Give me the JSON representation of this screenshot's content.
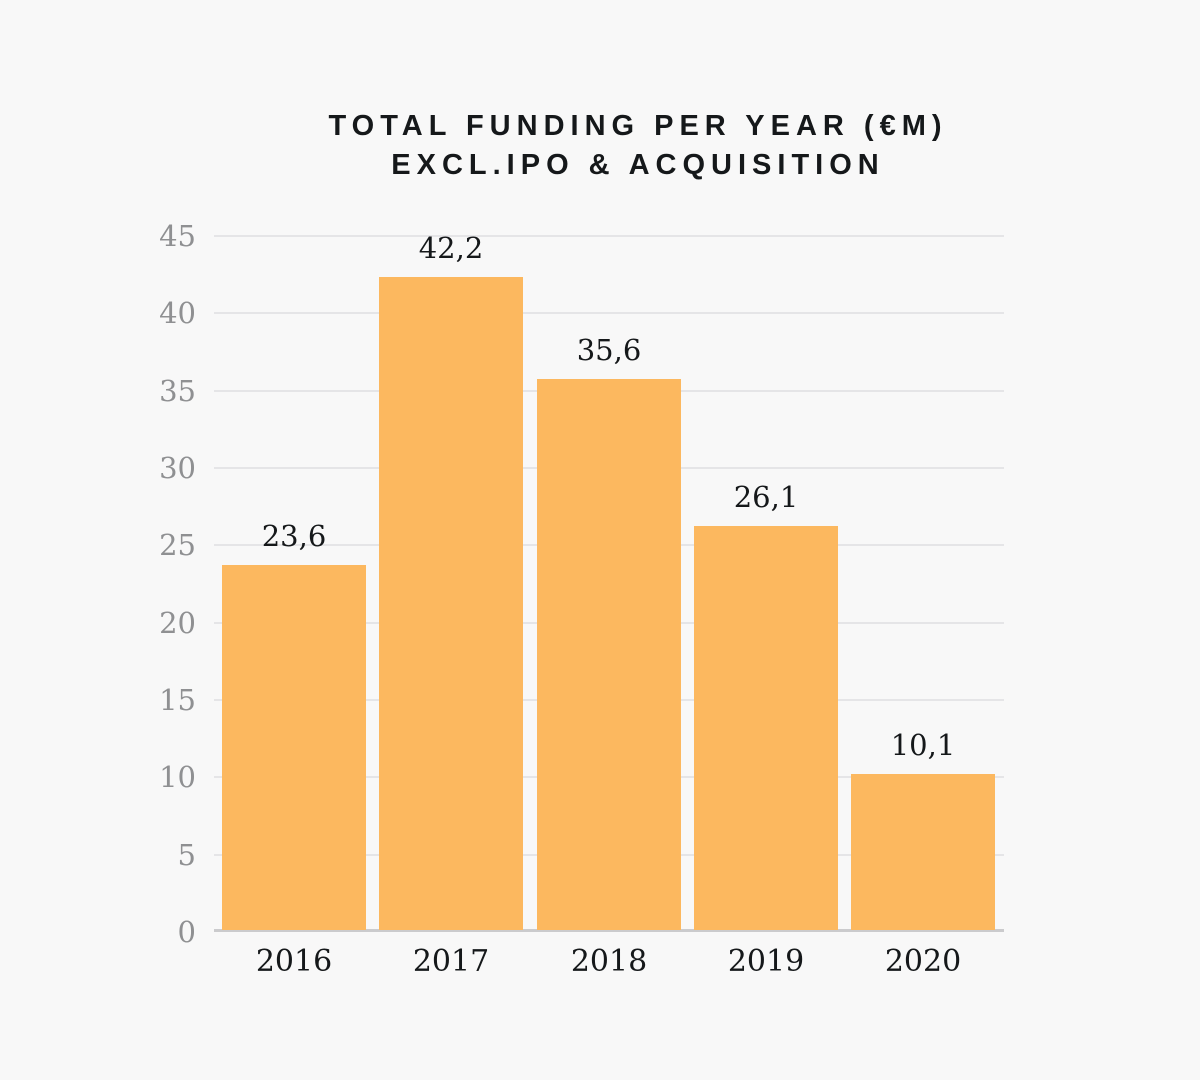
{
  "title": {
    "line1": "TOTAL FUNDING PER YEAR (€M)",
    "line2": "EXCL.IPO & ACQUISITION"
  },
  "chart_data": {
    "type": "bar",
    "title": "TOTAL FUNDING PER YEAR (€M) EXCL.IPO & ACQUISITION",
    "categories": [
      "2016",
      "2017",
      "2018",
      "2019",
      "2020"
    ],
    "values": [
      23.6,
      42.2,
      35.6,
      26.1,
      10.1
    ],
    "value_labels": [
      "23,6",
      "42,2",
      "35,6",
      "26,1",
      "10,1"
    ],
    "xlabel": "",
    "ylabel": "",
    "ylim": [
      0,
      45
    ],
    "yticks": [
      0,
      5,
      10,
      15,
      20,
      25,
      30,
      35,
      40,
      45
    ],
    "grid": true,
    "legend": false,
    "decimal_separator": ",",
    "colors": {
      "bar": "#fcb85f",
      "background": "#f8f8f8",
      "gridline": "#e5e5e7",
      "axis_baseline": "#cbcbcd",
      "y_tick_label": "#8f9092",
      "x_tick_label": "#15181a",
      "value_label": "#15181a",
      "title": "#15181a"
    }
  }
}
